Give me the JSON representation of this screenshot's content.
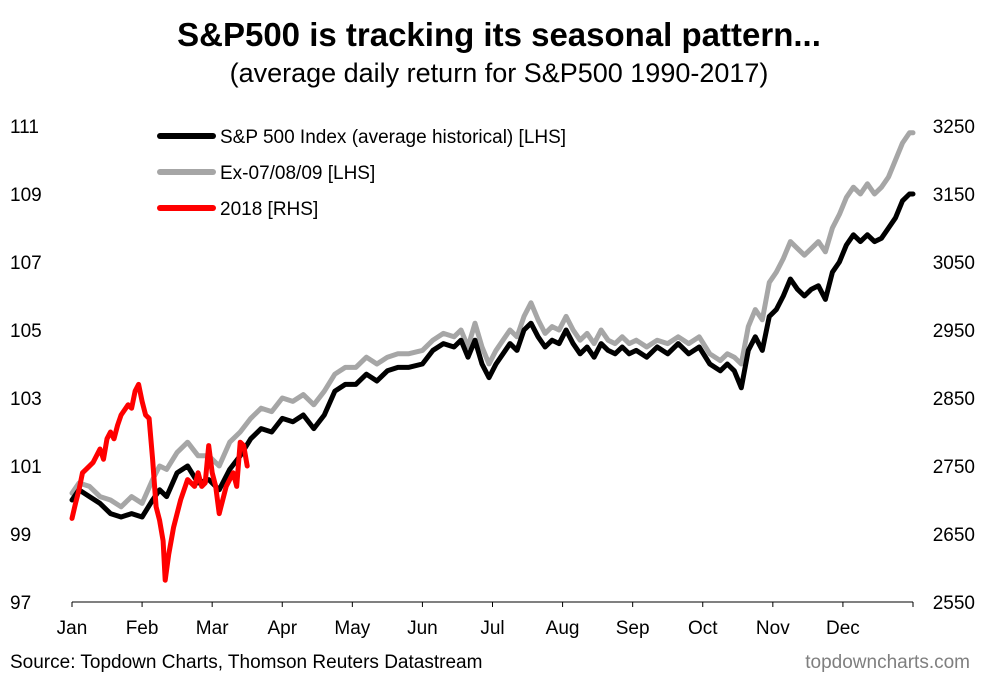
{
  "chart_data": {
    "type": "line",
    "title": "S&P500 is tracking its seasonal pattern...",
    "subtitle": "(average daily return for S&P500 1990-2017)",
    "x_labels": [
      "Jan",
      "Feb",
      "Mar",
      "Apr",
      "May",
      "Jun",
      "Jul",
      "Aug",
      "Sep",
      "Oct",
      "Nov",
      "Dec"
    ],
    "x_range": [
      0,
      12
    ],
    "y_left": {
      "range": [
        97,
        111
      ],
      "ticks": [
        97,
        99,
        101,
        103,
        105,
        107,
        109,
        111
      ]
    },
    "y_right": {
      "range": [
        2550,
        3250
      ],
      "ticks": [
        2550,
        2650,
        2750,
        2850,
        2950,
        3050,
        3150,
        3250
      ]
    },
    "legend": {
      "position": "top-left"
    },
    "series": [
      {
        "name": "S&P 500 Index (average historical) [LHS]",
        "axis": "left",
        "color": "#000000",
        "points": [
          [
            0.0,
            100.0
          ],
          [
            0.1,
            100.3
          ],
          [
            0.25,
            100.1
          ],
          [
            0.4,
            99.9
          ],
          [
            0.55,
            99.6
          ],
          [
            0.7,
            99.5
          ],
          [
            0.85,
            99.6
          ],
          [
            1.0,
            99.5
          ],
          [
            1.15,
            100.0
          ],
          [
            1.25,
            100.3
          ],
          [
            1.35,
            100.1
          ],
          [
            1.5,
            100.8
          ],
          [
            1.65,
            101.0
          ],
          [
            1.8,
            100.5
          ],
          [
            1.95,
            100.6
          ],
          [
            2.1,
            100.3
          ],
          [
            2.25,
            100.9
          ],
          [
            2.4,
            101.3
          ],
          [
            2.55,
            101.8
          ],
          [
            2.7,
            102.1
          ],
          [
            2.85,
            102.0
          ],
          [
            3.0,
            102.4
          ],
          [
            3.15,
            102.3
          ],
          [
            3.3,
            102.5
          ],
          [
            3.45,
            102.1
          ],
          [
            3.6,
            102.5
          ],
          [
            3.75,
            103.2
          ],
          [
            3.9,
            103.4
          ],
          [
            4.05,
            103.4
          ],
          [
            4.2,
            103.7
          ],
          [
            4.35,
            103.5
          ],
          [
            4.5,
            103.8
          ],
          [
            4.65,
            103.9
          ],
          [
            4.8,
            103.9
          ],
          [
            5.0,
            104.0
          ],
          [
            5.15,
            104.4
          ],
          [
            5.3,
            104.6
          ],
          [
            5.45,
            104.5
          ],
          [
            5.55,
            104.7
          ],
          [
            5.65,
            104.2
          ],
          [
            5.75,
            104.7
          ],
          [
            5.85,
            104.0
          ],
          [
            5.95,
            103.6
          ],
          [
            6.05,
            104.0
          ],
          [
            6.15,
            104.3
          ],
          [
            6.25,
            104.6
          ],
          [
            6.35,
            104.4
          ],
          [
            6.45,
            105.0
          ],
          [
            6.55,
            105.2
          ],
          [
            6.65,
            104.8
          ],
          [
            6.75,
            104.5
          ],
          [
            6.85,
            104.7
          ],
          [
            6.95,
            104.6
          ],
          [
            7.05,
            105.0
          ],
          [
            7.15,
            104.6
          ],
          [
            7.25,
            104.3
          ],
          [
            7.35,
            104.5
          ],
          [
            7.45,
            104.2
          ],
          [
            7.55,
            104.6
          ],
          [
            7.65,
            104.4
          ],
          [
            7.75,
            104.3
          ],
          [
            7.85,
            104.5
          ],
          [
            7.95,
            104.3
          ],
          [
            8.05,
            104.4
          ],
          [
            8.2,
            104.2
          ],
          [
            8.35,
            104.5
          ],
          [
            8.5,
            104.3
          ],
          [
            8.65,
            104.6
          ],
          [
            8.8,
            104.3
          ],
          [
            8.95,
            104.5
          ],
          [
            9.1,
            104.0
          ],
          [
            9.25,
            103.8
          ],
          [
            9.35,
            104.0
          ],
          [
            9.45,
            103.8
          ],
          [
            9.55,
            103.3
          ],
          [
            9.65,
            104.4
          ],
          [
            9.75,
            104.8
          ],
          [
            9.85,
            104.4
          ],
          [
            9.95,
            105.4
          ],
          [
            10.05,
            105.6
          ],
          [
            10.15,
            106.0
          ],
          [
            10.25,
            106.5
          ],
          [
            10.35,
            106.2
          ],
          [
            10.45,
            106.0
          ],
          [
            10.55,
            106.2
          ],
          [
            10.65,
            106.3
          ],
          [
            10.75,
            105.9
          ],
          [
            10.85,
            106.7
          ],
          [
            10.95,
            107.0
          ],
          [
            11.05,
            107.5
          ],
          [
            11.15,
            107.8
          ],
          [
            11.25,
            107.6
          ],
          [
            11.35,
            107.8
          ],
          [
            11.45,
            107.6
          ],
          [
            11.55,
            107.7
          ],
          [
            11.65,
            108.0
          ],
          [
            11.75,
            108.3
          ],
          [
            11.85,
            108.8
          ],
          [
            11.95,
            109.0
          ],
          [
            12.0,
            109.0
          ]
        ]
      },
      {
        "name": "Ex-07/08/09 [LHS]",
        "axis": "left",
        "color": "#a6a6a6",
        "points": [
          [
            0.0,
            100.2
          ],
          [
            0.1,
            100.5
          ],
          [
            0.25,
            100.4
          ],
          [
            0.4,
            100.1
          ],
          [
            0.55,
            100.0
          ],
          [
            0.7,
            99.8
          ],
          [
            0.85,
            100.1
          ],
          [
            1.0,
            99.9
          ],
          [
            1.15,
            100.6
          ],
          [
            1.25,
            101.0
          ],
          [
            1.35,
            100.9
          ],
          [
            1.5,
            101.4
          ],
          [
            1.65,
            101.7
          ],
          [
            1.8,
            101.3
          ],
          [
            1.95,
            101.3
          ],
          [
            2.1,
            101.0
          ],
          [
            2.25,
            101.7
          ],
          [
            2.4,
            102.0
          ],
          [
            2.55,
            102.4
          ],
          [
            2.7,
            102.7
          ],
          [
            2.85,
            102.6
          ],
          [
            3.0,
            103.0
          ],
          [
            3.15,
            102.9
          ],
          [
            3.3,
            103.1
          ],
          [
            3.45,
            102.8
          ],
          [
            3.6,
            103.2
          ],
          [
            3.75,
            103.7
          ],
          [
            3.9,
            103.9
          ],
          [
            4.05,
            103.9
          ],
          [
            4.2,
            104.2
          ],
          [
            4.35,
            104.0
          ],
          [
            4.5,
            104.2
          ],
          [
            4.65,
            104.3
          ],
          [
            4.8,
            104.3
          ],
          [
            5.0,
            104.4
          ],
          [
            5.15,
            104.7
          ],
          [
            5.3,
            104.9
          ],
          [
            5.45,
            104.8
          ],
          [
            5.55,
            105.0
          ],
          [
            5.65,
            104.5
          ],
          [
            5.75,
            105.2
          ],
          [
            5.85,
            104.5
          ],
          [
            5.95,
            104.0
          ],
          [
            6.05,
            104.4
          ],
          [
            6.15,
            104.7
          ],
          [
            6.25,
            105.0
          ],
          [
            6.35,
            104.8
          ],
          [
            6.45,
            105.4
          ],
          [
            6.55,
            105.8
          ],
          [
            6.65,
            105.3
          ],
          [
            6.75,
            104.9
          ],
          [
            6.85,
            105.1
          ],
          [
            6.95,
            105.0
          ],
          [
            7.05,
            105.4
          ],
          [
            7.15,
            105.0
          ],
          [
            7.25,
            104.7
          ],
          [
            7.35,
            104.9
          ],
          [
            7.45,
            104.6
          ],
          [
            7.55,
            105.0
          ],
          [
            7.65,
            104.7
          ],
          [
            7.75,
            104.6
          ],
          [
            7.85,
            104.8
          ],
          [
            7.95,
            104.6
          ],
          [
            8.05,
            104.7
          ],
          [
            8.2,
            104.5
          ],
          [
            8.35,
            104.7
          ],
          [
            8.5,
            104.6
          ],
          [
            8.65,
            104.8
          ],
          [
            8.8,
            104.6
          ],
          [
            8.95,
            104.8
          ],
          [
            9.1,
            104.3
          ],
          [
            9.25,
            104.1
          ],
          [
            9.35,
            104.3
          ],
          [
            9.45,
            104.2
          ],
          [
            9.55,
            104.0
          ],
          [
            9.65,
            105.1
          ],
          [
            9.75,
            105.6
          ],
          [
            9.85,
            105.3
          ],
          [
            9.95,
            106.4
          ],
          [
            10.05,
            106.7
          ],
          [
            10.15,
            107.1
          ],
          [
            10.25,
            107.6
          ],
          [
            10.35,
            107.4
          ],
          [
            10.45,
            107.2
          ],
          [
            10.55,
            107.4
          ],
          [
            10.65,
            107.6
          ],
          [
            10.75,
            107.3
          ],
          [
            10.85,
            108.0
          ],
          [
            10.95,
            108.4
          ],
          [
            11.05,
            108.9
          ],
          [
            11.15,
            109.2
          ],
          [
            11.25,
            109.0
          ],
          [
            11.35,
            109.3
          ],
          [
            11.45,
            109.0
          ],
          [
            11.55,
            109.2
          ],
          [
            11.65,
            109.5
          ],
          [
            11.75,
            110.0
          ],
          [
            11.85,
            110.5
          ],
          [
            11.95,
            110.8
          ],
          [
            12.0,
            110.8
          ]
        ]
      },
      {
        "name": "2018 [RHS]",
        "axis": "right",
        "color": "#ff0000",
        "points": [
          [
            0.0,
            2673
          ],
          [
            0.05,
            2695
          ],
          [
            0.1,
            2715
          ],
          [
            0.15,
            2740
          ],
          [
            0.2,
            2745
          ],
          [
            0.3,
            2755
          ],
          [
            0.4,
            2775
          ],
          [
            0.45,
            2760
          ],
          [
            0.5,
            2790
          ],
          [
            0.55,
            2800
          ],
          [
            0.6,
            2790
          ],
          [
            0.65,
            2810
          ],
          [
            0.7,
            2825
          ],
          [
            0.8,
            2840
          ],
          [
            0.85,
            2835
          ],
          [
            0.9,
            2860
          ],
          [
            0.95,
            2870
          ],
          [
            1.0,
            2845
          ],
          [
            1.05,
            2825
          ],
          [
            1.1,
            2820
          ],
          [
            1.15,
            2760
          ],
          [
            1.2,
            2690
          ],
          [
            1.25,
            2670
          ],
          [
            1.3,
            2640
          ],
          [
            1.33,
            2582
          ],
          [
            1.38,
            2620
          ],
          [
            1.45,
            2660
          ],
          [
            1.55,
            2700
          ],
          [
            1.65,
            2730
          ],
          [
            1.75,
            2720
          ],
          [
            1.8,
            2740
          ],
          [
            1.85,
            2720
          ],
          [
            1.9,
            2725
          ],
          [
            1.95,
            2780
          ],
          [
            2.0,
            2740
          ],
          [
            2.05,
            2720
          ],
          [
            2.1,
            2680
          ],
          [
            2.15,
            2700
          ],
          [
            2.2,
            2720
          ],
          [
            2.3,
            2740
          ],
          [
            2.35,
            2720
          ],
          [
            2.4,
            2785
          ],
          [
            2.45,
            2780
          ],
          [
            2.5,
            2750
          ]
        ]
      }
    ]
  },
  "footer": {
    "source": "Source: Topdown Charts, Thomson Reuters Datastream",
    "brand": "topdowncharts.com"
  }
}
